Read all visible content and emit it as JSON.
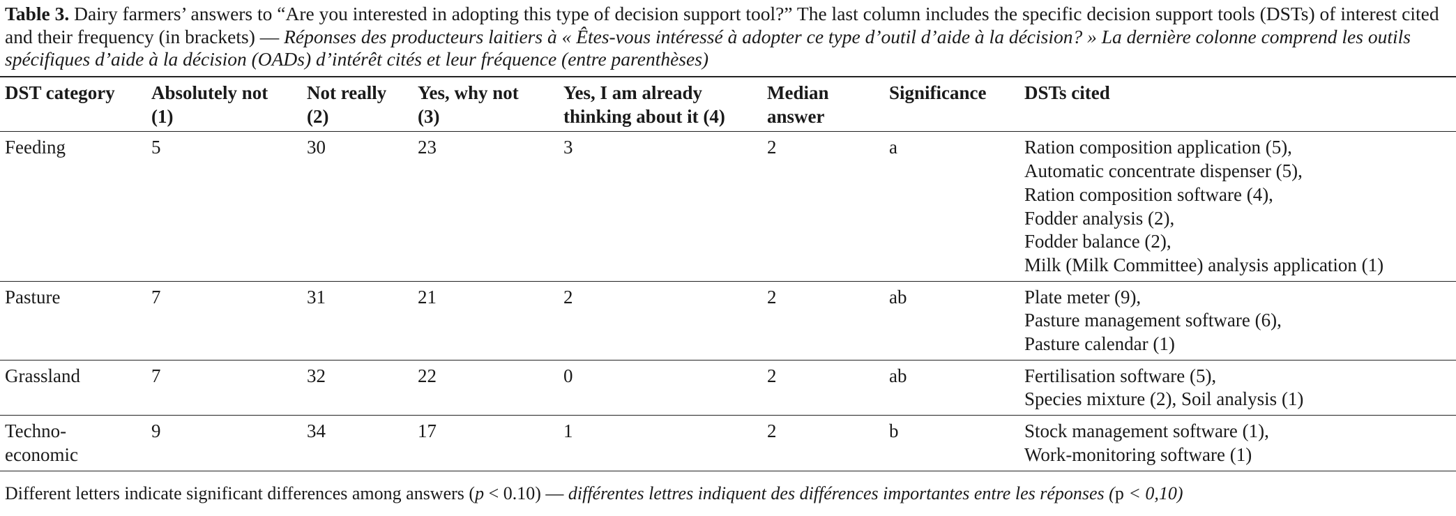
{
  "caption": {
    "label": "Table 3.",
    "text_en": " Dairy farmers’ answers to “Are you interested in adopting this type of decision support tool?” The last column includes the specific decision support tools (DSTs) of interest cited and their frequency (in brackets) — ",
    "text_fr": "Réponses des producteurs laitiers à « Êtes-vous intéressé à adopter ce type d’outil d’aide à la décision? » La dernière colonne comprend les outils spécifiques d’aide à la décision (OADs) d’intérêt cités et leur fréquence (entre parenthèses)"
  },
  "table": {
    "header": [
      [
        "DST category"
      ],
      [
        "Absolutely not",
        "(1)"
      ],
      [
        "Not really",
        "(2)"
      ],
      [
        "Yes, why not",
        "(3)"
      ],
      [
        "Yes, I am already",
        "thinking about it (4)"
      ],
      [
        "Median",
        "answer"
      ],
      [
        "Significance"
      ],
      [
        "DSTs cited"
      ]
    ],
    "rows": [
      [
        [
          "Feeding"
        ],
        5,
        30,
        23,
        3,
        2,
        "a",
        [
          "Ration composition application (5),",
          "Automatic concentrate dispenser (5),",
          "Ration composition software (4),",
          "Fodder analysis (2),",
          "Fodder balance (2),",
          "Milk (Milk Committee) analysis application (1)"
        ]
      ],
      [
        [
          "Pasture"
        ],
        7,
        31,
        21,
        2,
        2,
        "ab",
        [
          "Plate meter (9),",
          "Pasture management software (6),",
          "Pasture calendar (1)"
        ]
      ],
      [
        [
          "Grassland"
        ],
        7,
        32,
        22,
        0,
        2,
        "ab",
        [
          "Fertilisation software (5),",
          "Species mixture (2), Soil analysis (1)"
        ]
      ],
      [
        [
          "Techno-",
          "economic"
        ],
        9,
        34,
        17,
        1,
        2,
        "b",
        [
          "Stock management software (1),",
          "Work-monitoring software (1)"
        ]
      ]
    ]
  },
  "footnote": {
    "en_1": "Different letters indicate significant differences among answers (",
    "p_en": "p",
    "en_2": " < 0.10) — ",
    "fr_1": "différentes lettres indiquent des différences importantes entre les réponses (",
    "p_fr": "p",
    "fr_2": " < 0,10)"
  }
}
